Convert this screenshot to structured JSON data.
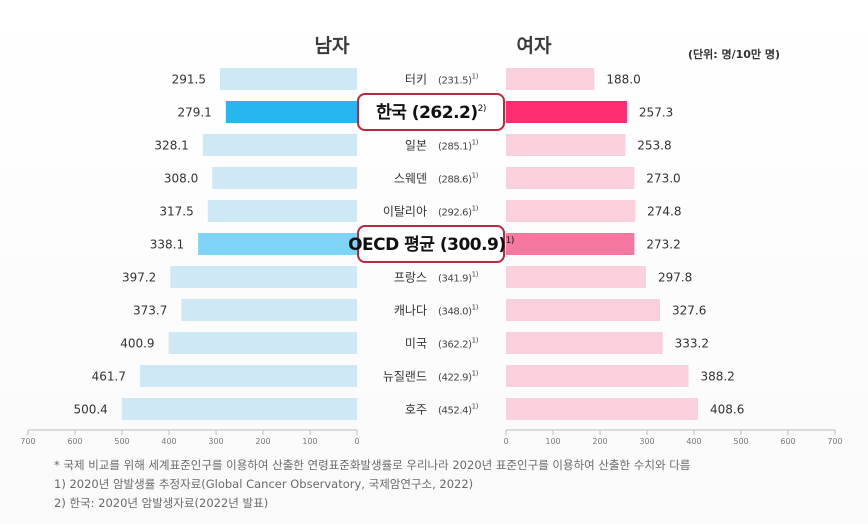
{
  "unit_label": "(단위: 명/10만 명)",
  "notes": [
    "* 국제 비교를 위해 세계표준인구를 이용하여 산출한 연령표준화발생률로 우리나라 2020년 표준인구를 이용하여 산출한 수치와 다름",
    "1) 2020년 암발생률 추정자료(Global Cancer Observatory, 국제암연구소, 2022)",
    "2) 한국: 2020년 암발생자료(2022년 발표)"
  ],
  "chart_data": {
    "type": "bar",
    "orientation": "horizontal-butterfly",
    "categories": [
      {
        "name": "터키",
        "total": "(231.5)",
        "note": "1)",
        "highlight": false
      },
      {
        "name": "한국",
        "total": "(262.2)",
        "note": "2)",
        "highlight": true
      },
      {
        "name": "일본",
        "total": "(285.1)",
        "note": "1)",
        "highlight": false
      },
      {
        "name": "스웨덴",
        "total": "(288.6)",
        "note": "1)",
        "highlight": false
      },
      {
        "name": "이탈리아",
        "total": "(292.6)",
        "note": "1)",
        "highlight": false
      },
      {
        "name": "OECD 평균",
        "total": "(300.9)",
        "note": "1)",
        "highlight": true
      },
      {
        "name": "프랑스",
        "total": "(341.9)",
        "note": "1)",
        "highlight": false
      },
      {
        "name": "캐나다",
        "total": "(348.0)",
        "note": "1)",
        "highlight": false
      },
      {
        "name": "미국",
        "total": "(362.2)",
        "note": "1)",
        "highlight": false
      },
      {
        "name": "뉴질랜드",
        "total": "(422.9)",
        "note": "1)",
        "highlight": false
      },
      {
        "name": "호주",
        "total": "(452.4)",
        "note": "1)",
        "highlight": false
      }
    ],
    "series": [
      {
        "name": "남자",
        "side": "left",
        "values": [
          291.5,
          279.1,
          328.1,
          308.0,
          317.5,
          338.1,
          397.2,
          373.7,
          400.9,
          461.7,
          500.4
        ],
        "labels": [
          "291.5",
          "279.1",
          "328.1",
          "308.0",
          "317.5",
          "338.1",
          "397.2",
          "373.7",
          "400.9",
          "461.7",
          "500.4"
        ],
        "color": "#cfe8f6",
        "highlight_colors": [
          "#29b6ee",
          "#7fd4f5"
        ]
      },
      {
        "name": "여자",
        "side": "right",
        "values": [
          188.0,
          257.3,
          253.8,
          273.0,
          274.8,
          273.2,
          297.8,
          327.6,
          333.2,
          388.2,
          408.6
        ],
        "labels": [
          "188.0",
          "257.3",
          "253.8",
          "273.0",
          "274.8",
          "273.2",
          "297.8",
          "327.6",
          "333.2",
          "388.2",
          "408.6"
        ],
        "color": "#f9d0dc",
        "highlight_colors": [
          "#ff2d6f",
          "#f478a0"
        ]
      }
    ],
    "xlim": [
      0,
      700
    ],
    "ticks": [
      "700",
      "600",
      "500",
      "400",
      "300",
      "200",
      "100",
      "0"
    ],
    "ticks_right": [
      "0",
      "100",
      "200",
      "300",
      "400",
      "500",
      "600",
      "700"
    ]
  }
}
